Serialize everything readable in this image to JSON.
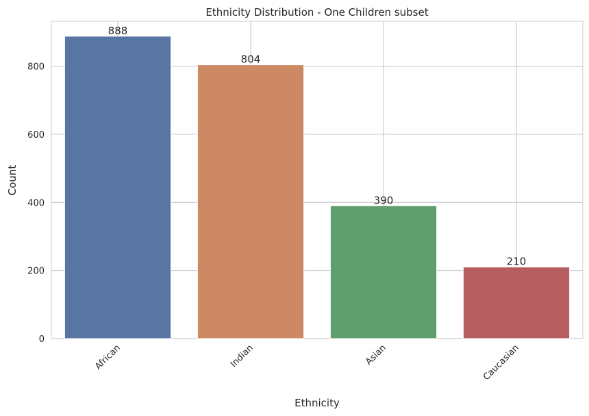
{
  "chart_data": {
    "type": "bar",
    "title": "Ethnicity Distribution - One Children subset",
    "xlabel": "Ethnicity",
    "ylabel": "Count",
    "categories": [
      "African",
      "Indian",
      "Asian",
      "Caucasian"
    ],
    "values": [
      888,
      804,
      390,
      210
    ],
    "data_labels": [
      "888",
      "804",
      "390",
      "210"
    ],
    "colors": [
      "#5875a4",
      "#cc8963",
      "#5f9e6e",
      "#b55d60"
    ],
    "ylim": [
      0,
      932
    ],
    "yticks": [
      0,
      200,
      400,
      600,
      800
    ],
    "ytick_labels": [
      "0",
      "200",
      "400",
      "600",
      "800"
    ],
    "grid": true,
    "xtick_rotation": "45 degrees",
    "legend": "none"
  }
}
